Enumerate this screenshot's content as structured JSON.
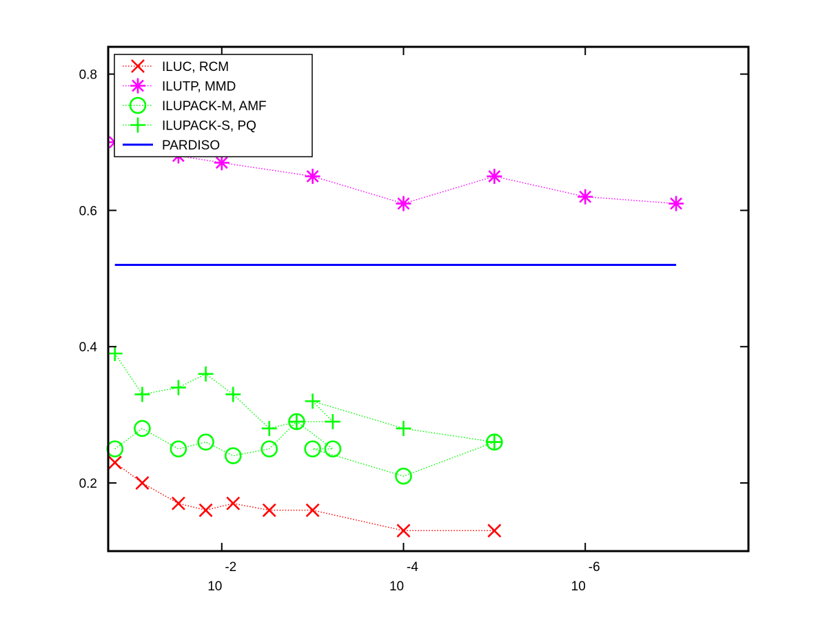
{
  "chart_data": {
    "type": "line",
    "title": "",
    "xlabel": "",
    "ylabel": "",
    "x_scale": "log",
    "x_direction": "decreasing",
    "xlim": [
      0.1778,
      1.6e-08
    ],
    "ylim": [
      0.1,
      0.84
    ],
    "grid": false,
    "legend_position": "top-left",
    "x_ticks": [
      {
        "value": 0.01,
        "base": "10",
        "exp": "-2"
      },
      {
        "value": 0.0001,
        "base": "10",
        "exp": "-4"
      },
      {
        "value": 1e-06,
        "base": "10",
        "exp": "-6"
      }
    ],
    "y_ticks": [
      {
        "value": 0.2,
        "label": "0.2"
      },
      {
        "value": 0.4,
        "label": "0.4"
      },
      {
        "value": 0.6,
        "label": "0.6"
      },
      {
        "value": 0.8,
        "label": "0.8"
      }
    ],
    "series": [
      {
        "name": "ILUC, RCM",
        "color": "#ff0000",
        "marker": "x",
        "line": "dotted",
        "points": [
          [
            0.15,
            0.23
          ],
          [
            0.075,
            0.2
          ],
          [
            0.03,
            0.17
          ],
          [
            0.015,
            0.16
          ],
          [
            0.0075,
            0.17
          ],
          [
            0.003,
            0.16
          ],
          [
            0.001,
            0.16
          ],
          [
            0.0001,
            0.13
          ],
          [
            1e-05,
            0.13
          ]
        ]
      },
      {
        "name": "ILUTP, MMD",
        "color": "#ff00ff",
        "marker": "asterisk",
        "line": "dotted",
        "points": [
          [
            0.15,
            0.7
          ],
          [
            0.03,
            0.68
          ],
          [
            0.01,
            0.67
          ],
          [
            0.001,
            0.65
          ],
          [
            0.0001,
            0.61
          ],
          [
            1e-05,
            0.65
          ],
          [
            1e-06,
            0.62
          ],
          [
            1e-07,
            0.61
          ]
        ]
      },
      {
        "name": "ILUPACK-M, AMF",
        "color": "#00ff00",
        "marker": "circle",
        "line": "dotted",
        "points": [
          [
            0.15,
            0.25
          ],
          [
            0.075,
            0.28
          ],
          [
            0.03,
            0.25
          ],
          [
            0.015,
            0.26
          ],
          [
            0.0075,
            0.24
          ],
          [
            0.003,
            0.25
          ],
          [
            0.0015,
            0.29
          ],
          [
            0.0006,
            0.25
          ],
          [
            0.001,
            0.25
          ],
          [
            0.0001,
            0.21
          ],
          [
            1e-05,
            0.26
          ]
        ]
      },
      {
        "name": "ILUPACK-S, PQ",
        "color": "#00ff00",
        "marker": "plus",
        "line": "dotted",
        "points": [
          [
            0.15,
            0.39
          ],
          [
            0.075,
            0.33
          ],
          [
            0.03,
            0.34
          ],
          [
            0.015,
            0.36
          ],
          [
            0.0075,
            0.33
          ],
          [
            0.003,
            0.28
          ],
          [
            0.0015,
            0.29
          ],
          [
            0.0006,
            0.29
          ],
          [
            0.001,
            0.32
          ],
          [
            0.0001,
            0.28
          ],
          [
            1e-05,
            0.26
          ]
        ]
      },
      {
        "name": "PARDISO",
        "color": "#0000ff",
        "marker": "none",
        "line": "solid",
        "points": [
          [
            0.15,
            0.52
          ],
          [
            1e-07,
            0.52
          ]
        ]
      }
    ]
  }
}
